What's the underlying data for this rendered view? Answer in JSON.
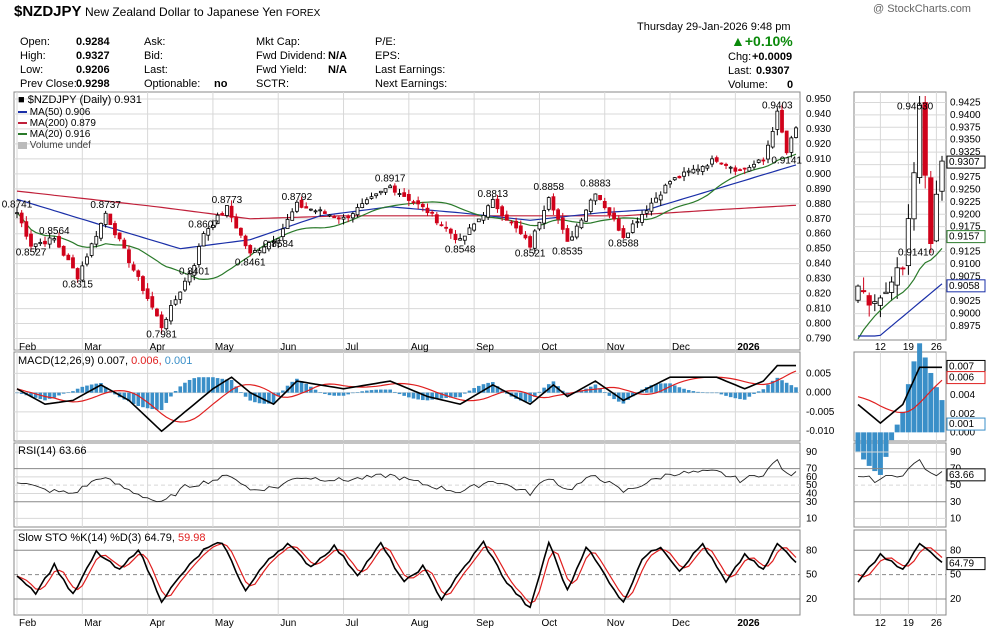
{
  "header": {
    "symbol": "$NZDJPY",
    "description": "New Zealand Dollar to Japanese Yen",
    "exchange": "FOREX",
    "datetime": "Thursday  29-Jan-2026  9:48 pm",
    "brand": "@ StockCharts.com",
    "change_pct": "▲+0.10%",
    "chg_label": "Chg:",
    "chg_value": "+0.0009",
    "last_label": "Last:",
    "last_value": "0.9307",
    "volume_label": "Volume:",
    "volume_value": "0"
  },
  "quote": {
    "open_label": "Open:",
    "open": "0.9284",
    "high_label": "High:",
    "high": "0.9327",
    "low_label": "Low:",
    "low": "0.9206",
    "prev_label": "Prev Close:",
    "prev": "0.9298",
    "ask_label": "Ask:",
    "bid_label": "Bid:",
    "last2_label": "Last:",
    "optionable_label": "Optionable:",
    "optionable": "no",
    "mktcap_label": "Mkt Cap:",
    "fwddiv_label": "Fwd Dividend:",
    "fwddiv": "N/A",
    "fwdyield_label": "Fwd Yield:",
    "fwdyield": "N/A",
    "sctr_label": "SCTR:",
    "pe_label": "P/E:",
    "eps_label": "EPS:",
    "lastearn_label": "Last Earnings:",
    "nextearn_label": "Next Earnings:"
  },
  "legend": {
    "price": "■ $NZDJPY (Daily) 0.931",
    "ma50": "MA(50) 0.906",
    "ma200": "MA(200) 0.879",
    "ma20": "MA(20) 0.916",
    "volume": "Volume undef"
  },
  "colors": {
    "up": "#000000",
    "down": "#d0021b",
    "ma50": "#1a2fa8",
    "ma200": "#c0203a",
    "ma20": "#2a7a2a",
    "macd_hist": "#3a8fc8",
    "grid": "#d8d8d8",
    "signal": "#e02020"
  },
  "chart_data": [
    {
      "type": "candlestick",
      "name": "$NZDJPY (Daily)",
      "x_ticks": [
        "Feb",
        "Mar",
        "Apr",
        "May",
        "Jun",
        "Jul",
        "Aug",
        "Sep",
        "Oct",
        "Nov",
        "Dec",
        "2026"
      ],
      "y_ticks": [
        "0.950",
        "0.940",
        "0.930",
        "0.920",
        "0.910",
        "0.900",
        "0.890",
        "0.880",
        "0.870",
        "0.860",
        "0.850",
        "0.840",
        "0.830",
        "0.820",
        "0.810",
        "0.800",
        "0.790"
      ],
      "ylim": [
        0.785,
        0.952
      ],
      "anchors": [
        [
          0,
          0.8741
        ],
        [
          3,
          0.8527
        ],
        [
          8,
          0.8564
        ],
        [
          13,
          0.8315
        ],
        [
          19,
          0.8737
        ],
        [
          31,
          0.7981
        ],
        [
          38,
          0.8401
        ],
        [
          40,
          0.8607
        ],
        [
          45,
          0.8773
        ],
        [
          50,
          0.8461
        ],
        [
          56,
          0.8584
        ],
        [
          60,
          0.8792
        ],
        [
          70,
          0.87
        ],
        [
          80,
          0.8917
        ],
        [
          88,
          0.875
        ],
        [
          95,
          0.8548
        ],
        [
          102,
          0.8813
        ],
        [
          110,
          0.8521
        ],
        [
          114,
          0.8858
        ],
        [
          118,
          0.8535
        ],
        [
          124,
          0.8883
        ],
        [
          130,
          0.8588
        ],
        [
          140,
          0.895
        ],
        [
          150,
          0.91
        ],
        [
          155,
          0.902
        ],
        [
          160,
          0.909
        ],
        [
          163,
          0.9403
        ],
        [
          165,
          0.9141
        ],
        [
          167,
          0.9307
        ]
      ],
      "annotations": [
        {
          "bar": 0,
          "value": 0.8741,
          "text": "0.8741",
          "pos": "above"
        },
        {
          "bar": 3,
          "value": 0.8527,
          "text": "0.8527",
          "pos": "below"
        },
        {
          "bar": 8,
          "value": 0.8564,
          "text": "0.8564",
          "pos": "above"
        },
        {
          "bar": 13,
          "value": 0.8315,
          "text": "0.8315",
          "pos": "below"
        },
        {
          "bar": 19,
          "value": 0.8737,
          "text": "0.8737",
          "pos": "above"
        },
        {
          "bar": 31,
          "value": 0.7981,
          "text": "0.7981",
          "pos": "below"
        },
        {
          "bar": 38,
          "value": 0.8401,
          "text": "0.8401",
          "pos": "below"
        },
        {
          "bar": 40,
          "value": 0.8607,
          "text": "0.8607",
          "pos": "above"
        },
        {
          "bar": 45,
          "value": 0.8773,
          "text": "0.8773",
          "pos": "above"
        },
        {
          "bar": 50,
          "value": 0.8461,
          "text": "0.8461",
          "pos": "below"
        },
        {
          "bar": 56,
          "value": 0.8584,
          "text": "0.8584",
          "pos": "below"
        },
        {
          "bar": 60,
          "value": 0.8792,
          "text": "0.8792",
          "pos": "above"
        },
        {
          "bar": 80,
          "value": 0.8917,
          "text": "0.8917",
          "pos": "above"
        },
        {
          "bar": 95,
          "value": 0.8548,
          "text": "0.8548",
          "pos": "below"
        },
        {
          "bar": 102,
          "value": 0.8813,
          "text": "0.8813",
          "pos": "above"
        },
        {
          "bar": 110,
          "value": 0.8521,
          "text": "0.8521",
          "pos": "below"
        },
        {
          "bar": 114,
          "value": 0.8858,
          "text": "0.8858",
          "pos": "above"
        },
        {
          "bar": 118,
          "value": 0.8535,
          "text": "0.8535",
          "pos": "below"
        },
        {
          "bar": 124,
          "value": 0.8883,
          "text": "0.8883",
          "pos": "above"
        },
        {
          "bar": 130,
          "value": 0.8588,
          "text": "0.8588",
          "pos": "below"
        },
        {
          "bar": 163,
          "value": 0.9403,
          "text": "0.9403",
          "pos": "above"
        },
        {
          "bar": 165,
          "value": 0.9141,
          "text": "0.9141",
          "pos": "below"
        }
      ],
      "ma_end": {
        "ma50": 0.906,
        "ma200": 0.879,
        "ma20": 0.916
      }
    },
    {
      "type": "line",
      "name": "MACD(12,26,9)",
      "legend": [
        "MACD(12,26,9) 0.007,",
        "0.006,",
        "0.001"
      ],
      "y_ticks": [
        "0.005",
        "0.000",
        "-0.005",
        "-0.010"
      ],
      "ylim": [
        -0.0115,
        0.0095
      ],
      "anchors": [
        [
          0,
          0.001
        ],
        [
          6,
          -0.003
        ],
        [
          12,
          -0.002
        ],
        [
          18,
          0.002
        ],
        [
          24,
          -0.002
        ],
        [
          31,
          -0.01
        ],
        [
          36,
          -0.005
        ],
        [
          42,
          0.001
        ],
        [
          46,
          0.004
        ],
        [
          50,
          0.0
        ],
        [
          55,
          -0.003
        ],
        [
          60,
          0.003
        ],
        [
          70,
          0.001
        ],
        [
          80,
          0.003
        ],
        [
          88,
          -0.001
        ],
        [
          95,
          -0.003
        ],
        [
          102,
          0.002
        ],
        [
          110,
          -0.003
        ],
        [
          115,
          0.002
        ],
        [
          118,
          -0.001
        ],
        [
          124,
          0.003
        ],
        [
          130,
          -0.002
        ],
        [
          140,
          0.004
        ],
        [
          150,
          0.004
        ],
        [
          156,
          0.001
        ],
        [
          160,
          0.003
        ],
        [
          163,
          0.007
        ],
        [
          167,
          0.007
        ]
      ]
    },
    {
      "type": "line",
      "name": "RSI(14)",
      "legend": "RSI(14) 63.66",
      "y_ticks": [
        "90",
        "70",
        "60",
        "50",
        "40",
        "30",
        "10"
      ],
      "ylim": [
        2,
        96
      ],
      "anchors": [
        [
          0,
          55
        ],
        [
          6,
          44
        ],
        [
          12,
          40
        ],
        [
          18,
          60
        ],
        [
          24,
          44
        ],
        [
          31,
          28
        ],
        [
          36,
          48
        ],
        [
          42,
          56
        ],
        [
          46,
          62
        ],
        [
          50,
          44
        ],
        [
          56,
          48
        ],
        [
          60,
          60
        ],
        [
          70,
          56
        ],
        [
          80,
          62
        ],
        [
          88,
          50
        ],
        [
          95,
          42
        ],
        [
          102,
          56
        ],
        [
          110,
          40
        ],
        [
          114,
          60
        ],
        [
          118,
          44
        ],
        [
          124,
          62
        ],
        [
          130,
          42
        ],
        [
          140,
          64
        ],
        [
          150,
          66
        ],
        [
          155,
          56
        ],
        [
          160,
          64
        ],
        [
          163,
          80
        ],
        [
          165,
          62
        ],
        [
          167,
          64
        ]
      ]
    },
    {
      "type": "line",
      "name": "Slow STO %K(14) %D(3)",
      "legend": [
        "Slow STO %K(14) %D(3) 64.79,",
        "59.98"
      ],
      "y_ticks": [
        "80",
        "50",
        "20"
      ],
      "ylim": [
        4,
        100
      ],
      "anchors": [
        [
          0,
          50
        ],
        [
          4,
          28
        ],
        [
          8,
          62
        ],
        [
          12,
          25
        ],
        [
          17,
          78
        ],
        [
          22,
          55
        ],
        [
          26,
          82
        ],
        [
          31,
          18
        ],
        [
          36,
          55
        ],
        [
          40,
          80
        ],
        [
          44,
          90
        ],
        [
          49,
          30
        ],
        [
          54,
          70
        ],
        [
          58,
          88
        ],
        [
          63,
          60
        ],
        [
          68,
          85
        ],
        [
          73,
          50
        ],
        [
          78,
          88
        ],
        [
          83,
          40
        ],
        [
          87,
          60
        ],
        [
          91,
          20
        ],
        [
          96,
          60
        ],
        [
          100,
          90
        ],
        [
          105,
          40
        ],
        [
          110,
          8
        ],
        [
          114,
          90
        ],
        [
          118,
          30
        ],
        [
          122,
          85
        ],
        [
          126,
          50
        ],
        [
          130,
          15
        ],
        [
          134,
          70
        ],
        [
          138,
          85
        ],
        [
          142,
          55
        ],
        [
          147,
          88
        ],
        [
          152,
          40
        ],
        [
          156,
          75
        ],
        [
          160,
          55
        ],
        [
          163,
          88
        ],
        [
          167,
          65
        ]
      ]
    },
    {
      "type": "candlestick",
      "name": "recent zoom",
      "x_ticks": [
        "12",
        "19",
        "26"
      ],
      "y_ticks": [
        "0.9425",
        "0.9400",
        "0.9375",
        "0.9350",
        "0.9325",
        "0.9300",
        "0.9275",
        "0.9250",
        "0.9225",
        "0.9200",
        "0.9175",
        "0.9150",
        "0.9125",
        "0.9100",
        "0.9075",
        "0.9050",
        "0.9025",
        "0.9000",
        "0.8975"
      ],
      "ylim": [
        0.8955,
        0.9438
      ],
      "badges": {
        "last": "0.9307",
        "ma20": "0.9157",
        "ma50": "0.9058"
      },
      "annotations": [
        {
          "value": 0.9403,
          "text": "0.94030"
        },
        {
          "value": 0.9141,
          "text": "0.91410"
        }
      ],
      "macd_badges": [
        "0.007",
        "0.006",
        "0.001"
      ],
      "macd_ticks": [
        "0.006",
        "0.004",
        "0.002",
        "0.000"
      ],
      "rsi_badge": "63.66",
      "rsi_ticks": [
        "90",
        "70",
        "50",
        "30",
        "10"
      ],
      "sto_badge": "64.79",
      "sto_ticks": [
        "80",
        "50",
        "20"
      ]
    }
  ]
}
